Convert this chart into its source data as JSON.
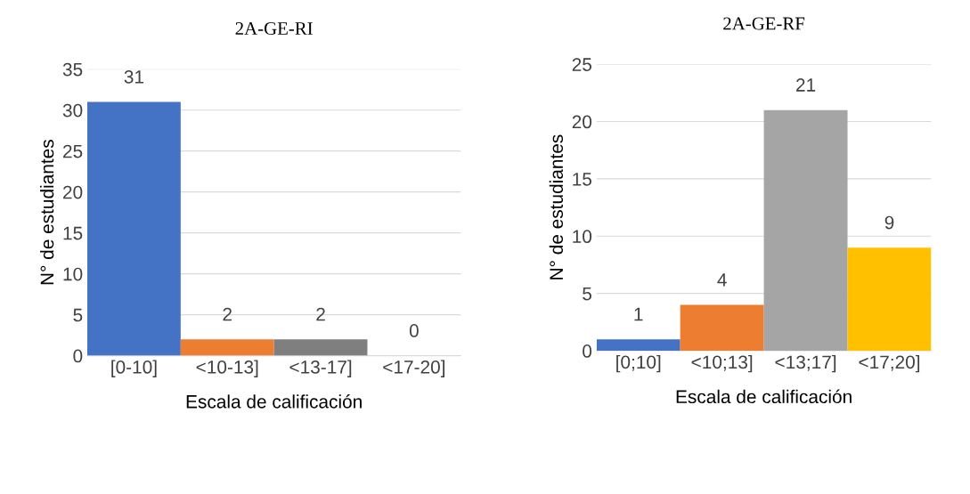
{
  "chart_data": [
    {
      "type": "bar",
      "title": "2A-GE-RI",
      "xlabel": "Escala de calificación",
      "ylabel": "N° de estudiantes",
      "categories": [
        "[0-10]",
        "<10-13]",
        "<13-17]",
        "<17-20]"
      ],
      "values": [
        31,
        2,
        2,
        0
      ],
      "colors": [
        "#4472c4",
        "#ed7d31",
        "#7f7f7f",
        "#ffc000"
      ],
      "ylim": [
        0,
        35
      ],
      "yticks": [
        0,
        5,
        10,
        15,
        20,
        25,
        30,
        35
      ],
      "grid": "y",
      "data_labels": true
    },
    {
      "type": "bar",
      "title": "2A-GE-RF",
      "xlabel": "Escala de calificación",
      "ylabel": "N° de estudiantes",
      "categories": [
        "[0;10]",
        "<10;13]",
        "<13;17]",
        "<17;20]"
      ],
      "values": [
        1,
        4,
        21,
        9
      ],
      "colors": [
        "#4472c4",
        "#ed7d31",
        "#a5a5a5",
        "#ffc000"
      ],
      "ylim": [
        0,
        25
      ],
      "yticks": [
        0,
        5,
        10,
        15,
        20,
        25
      ],
      "grid": "y",
      "data_labels": true
    }
  ]
}
